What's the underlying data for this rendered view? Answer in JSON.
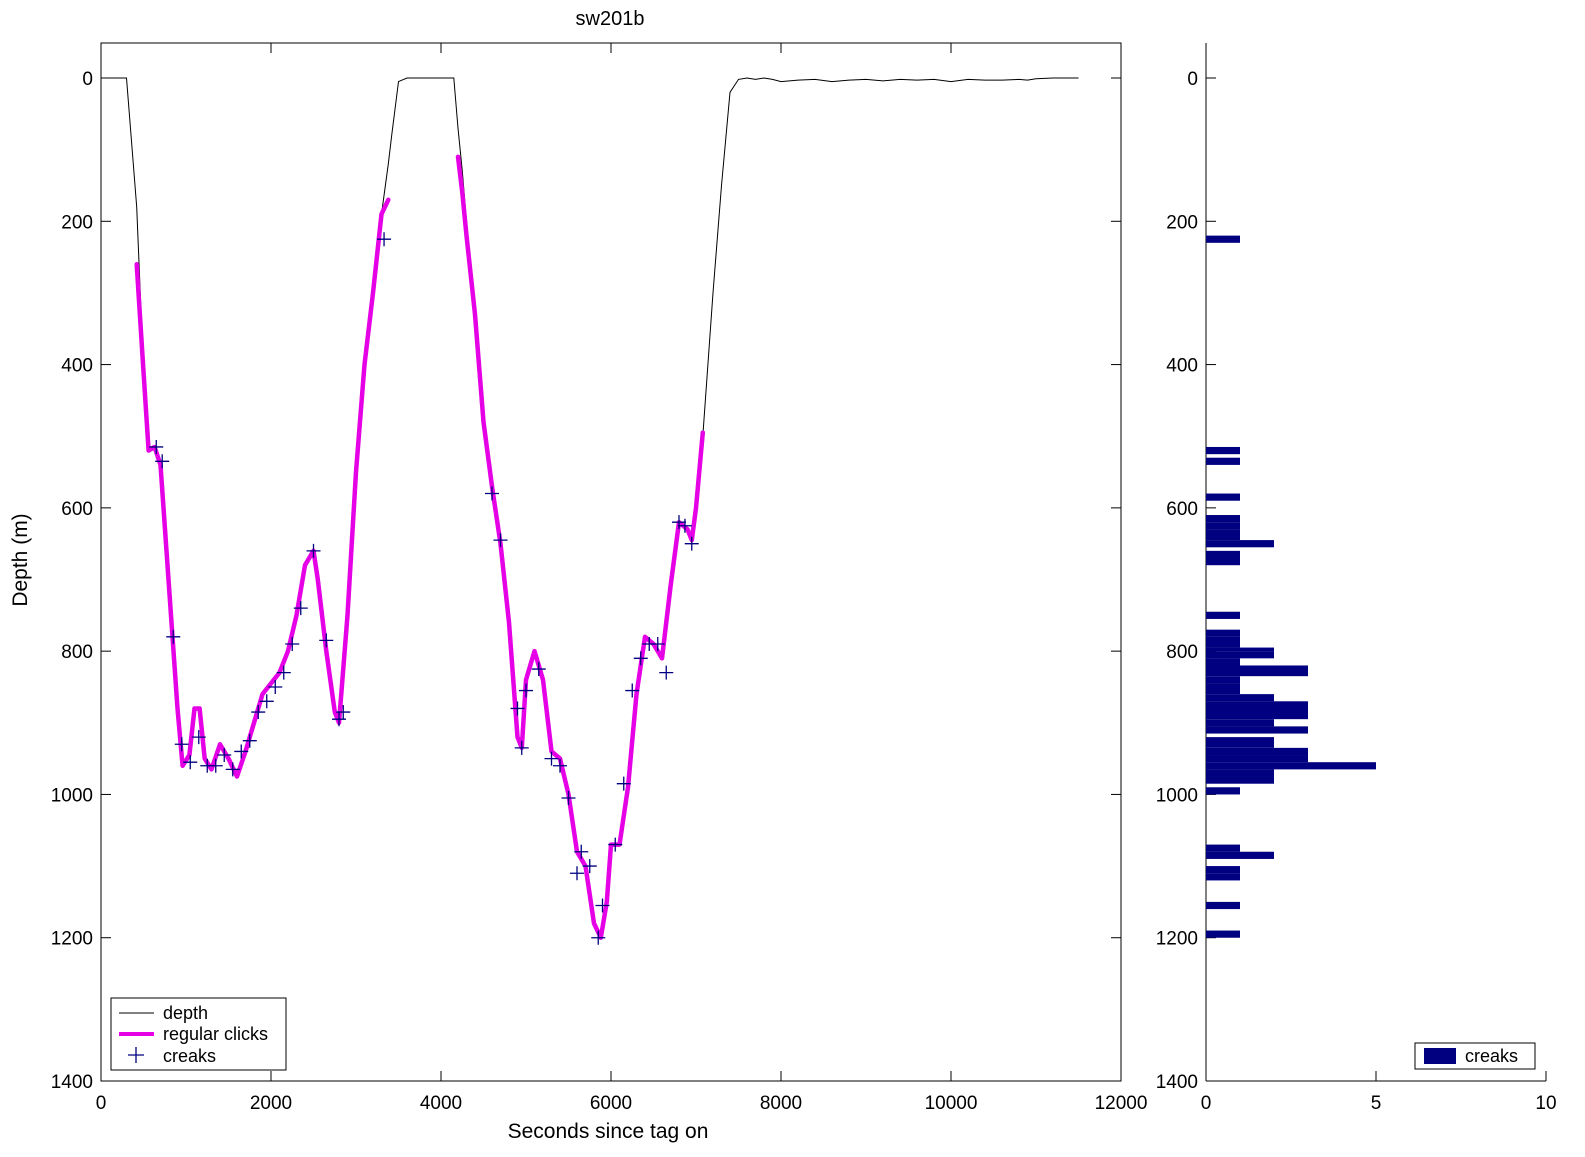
{
  "chart_data": [
    {
      "type": "line",
      "title": "sw201b",
      "xlabel": "Seconds since tag on",
      "ylabel": "Depth (m)",
      "xlim": [
        0,
        12000
      ],
      "ylim": [
        0,
        1400
      ],
      "y_reversed": true,
      "xticks": [
        "0",
        "2000",
        "4000",
        "6000",
        "8000",
        "10000",
        "12000"
      ],
      "yticks": [
        "0",
        "200",
        "400",
        "600",
        "800",
        "1000",
        "1200",
        "1400"
      ],
      "legend_position": "bottom-left",
      "colors": {
        "depth": "#000000",
        "regular_clicks": "#e600e6",
        "creaks": "#000080"
      },
      "series": [
        {
          "name": "depth",
          "style": "thin-black-line",
          "x": [
            0,
            250,
            300,
            420,
            500,
            560,
            630,
            700,
            800,
            900,
            960,
            1040,
            1100,
            1160,
            1220,
            1300,
            1400,
            1500,
            1600,
            1700,
            1800,
            1900,
            2000,
            2100,
            2200,
            2300,
            2400,
            2500,
            2550,
            2650,
            2750,
            2800,
            2900,
            3000,
            3100,
            3200,
            3300,
            3380,
            3420,
            3500,
            3600,
            3700,
            3800,
            3900,
            4000,
            4100,
            4150,
            4200,
            4250,
            4300,
            4400,
            4500,
            4600,
            4700,
            4800,
            4900,
            4950,
            5000,
            5100,
            5200,
            5300,
            5400,
            5500,
            5600,
            5700,
            5800,
            5880,
            5950,
            6000,
            6100,
            6200,
            6300,
            6400,
            6500,
            6600,
            6700,
            6800,
            6900,
            6950,
            7000,
            7080,
            7200,
            7300,
            7400,
            7500,
            7600,
            7700,
            7800,
            7900,
            8000,
            8200,
            8400,
            8600,
            8800,
            9000,
            9200,
            9400,
            9600,
            9800,
            10000,
            10200,
            10400,
            10600,
            10800,
            10900,
            11000,
            11200,
            11500
          ],
          "y": [
            0,
            0,
            0,
            180,
            410,
            520,
            515,
            540,
            710,
            880,
            960,
            945,
            880,
            880,
            950,
            965,
            930,
            950,
            975,
            940,
            900,
            860,
            845,
            830,
            800,
            750,
            680,
            660,
            700,
            800,
            885,
            900,
            750,
            550,
            400,
            300,
            190,
            120,
            80,
            5,
            0,
            0,
            0,
            0,
            0,
            0,
            0,
            70,
            130,
            200,
            330,
            480,
            570,
            650,
            760,
            920,
            935,
            840,
            800,
            840,
            940,
            950,
            1000,
            1080,
            1100,
            1180,
            1200,
            1150,
            1070,
            1070,
            990,
            860,
            780,
            790,
            810,
            710,
            620,
            630,
            645,
            600,
            500,
            300,
            150,
            20,
            2,
            0,
            2,
            0,
            2,
            5,
            3,
            2,
            5,
            3,
            2,
            4,
            2,
            3,
            2,
            5,
            2,
            3,
            3,
            2,
            3,
            1,
            0,
            0
          ]
        },
        {
          "name": "regular clicks",
          "style": "thick-magenta-line",
          "x": [
            420,
            500,
            560,
            630,
            700,
            800,
            900,
            960,
            1040,
            1100,
            1160,
            1220,
            1300,
            1400,
            1500,
            1600,
            1700,
            1800,
            1900,
            2000,
            2100,
            2200,
            2300,
            2400,
            2500,
            2550,
            2650,
            2750,
            2800,
            2900,
            3000,
            3100,
            3200,
            3300,
            3380,
            null,
            4200,
            4250,
            4300,
            4400,
            4500,
            4600,
            4700,
            4800,
            4900,
            4950,
            5000,
            5100,
            5200,
            5300,
            5400,
            5500,
            5600,
            5700,
            5800,
            5880,
            5950,
            6000,
            6100,
            6200,
            6300,
            6400,
            6500,
            6600,
            6700,
            6800,
            6900,
            6950,
            7000,
            7080
          ],
          "y": [
            260,
            410,
            520,
            515,
            540,
            710,
            880,
            960,
            945,
            880,
            880,
            950,
            965,
            930,
            950,
            975,
            940,
            900,
            860,
            845,
            830,
            800,
            750,
            680,
            660,
            700,
            800,
            885,
            900,
            750,
            550,
            400,
            300,
            190,
            170,
            null,
            110,
            160,
            220,
            330,
            480,
            570,
            650,
            760,
            920,
            935,
            840,
            800,
            840,
            940,
            950,
            1000,
            1080,
            1100,
            1180,
            1200,
            1150,
            1070,
            1070,
            990,
            860,
            780,
            790,
            810,
            710,
            620,
            630,
            645,
            600,
            495
          ]
        },
        {
          "name": "creaks",
          "style": "plus-markers",
          "x": [
            650,
            720,
            850,
            950,
            1050,
            1150,
            1250,
            1350,
            1450,
            1550,
            1650,
            1750,
            1850,
            1950,
            2050,
            2150,
            2250,
            2350,
            2500,
            2650,
            2800,
            2850,
            3330,
            4600,
            4700,
            4900,
            4950,
            5000,
            5150,
            5300,
            5400,
            5500,
            5600,
            5650,
            5750,
            5850,
            5900,
            6050,
            6150,
            6250,
            6350,
            6450,
            6550,
            6650,
            6800,
            6870,
            6950
          ],
          "y": [
            515,
            535,
            780,
            930,
            955,
            920,
            960,
            960,
            945,
            965,
            940,
            925,
            885,
            870,
            850,
            830,
            790,
            740,
            660,
            785,
            895,
            885,
            225,
            580,
            645,
            880,
            935,
            855,
            825,
            950,
            960,
            1005,
            1110,
            1080,
            1100,
            1200,
            1155,
            1070,
            985,
            855,
            810,
            790,
            790,
            830,
            620,
            625,
            650
          ]
        }
      ]
    },
    {
      "type": "bar",
      "orientation": "horizontal",
      "xlim": [
        0,
        10
      ],
      "ylim": [
        0,
        1400
      ],
      "y_reversed": true,
      "xticks": [
        "0",
        "5",
        "10"
      ],
      "yticks": [
        "0",
        "200",
        "400",
        "600",
        "800",
        "1000",
        "1200",
        "1400"
      ],
      "legend_position": "bottom-right",
      "color": "#000080",
      "series": [
        {
          "name": "creaks",
          "bin_edges_start": [
            220,
            515,
            530,
            580,
            610,
            620,
            630,
            645,
            660,
            670,
            745,
            770,
            780,
            795,
            800,
            810,
            820,
            835,
            845,
            860,
            870,
            880,
            895,
            905,
            920,
            935,
            945,
            955,
            965,
            975,
            990,
            1070,
            1080,
            1100,
            1110,
            1150,
            1190
          ],
          "bin_edges_end": [
            230,
            525,
            540,
            590,
            620,
            630,
            645,
            655,
            670,
            680,
            755,
            780,
            795,
            800,
            810,
            820,
            835,
            845,
            860,
            870,
            880,
            895,
            905,
            915,
            935,
            945,
            955,
            965,
            975,
            985,
            1000,
            1080,
            1090,
            1110,
            1120,
            1160,
            1200
          ],
          "counts": [
            1,
            1,
            1,
            1,
            1,
            1,
            1,
            2,
            1,
            1,
            1,
            1,
            1,
            2,
            2,
            1,
            3,
            1,
            1,
            2,
            3,
            3,
            2,
            3,
            2,
            3,
            3,
            5,
            2,
            2,
            1,
            1,
            2,
            1,
            1,
            1,
            1
          ]
        }
      ]
    }
  ]
}
